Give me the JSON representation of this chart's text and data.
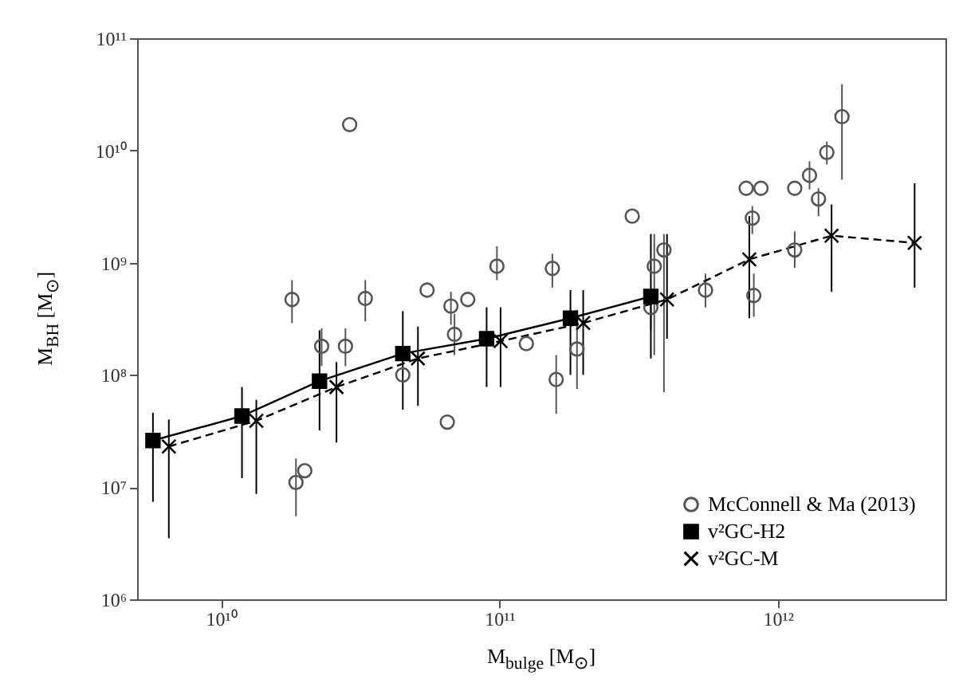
{
  "chart_data": {
    "type": "scatter",
    "xlabel": "M$_{bulge}$ [M$_{⊙}$]",
    "ylabel": "M$_{BH}$ [M$_{⊙}$]",
    "log": "xy",
    "legend": "bottom right",
    "grid": false,
    "xlim": [
      5000000000.0,
      4000000000000.0
    ],
    "ylim": [
      1000000.0,
      100000000000.0
    ],
    "xticks": [
      {
        "value": 10000000000.0,
        "label": "10¹⁰"
      },
      {
        "value": 100000000000.0,
        "label": "10¹¹"
      },
      {
        "value": 1000000000000.0,
        "label": "10¹²"
      }
    ],
    "yticks": [
      {
        "value": 1000000.0,
        "label": "10⁶"
      },
      {
        "value": 10000000.0,
        "label": "10⁷"
      },
      {
        "value": 100000000.0,
        "label": "10⁸"
      },
      {
        "value": 1000000000.0,
        "label": "10⁹"
      },
      {
        "value": 10000000000.0,
        "label": "10¹⁰"
      },
      {
        "value": 100000000000.0,
        "label": "10¹¹"
      }
    ],
    "series": [
      {
        "name": "McConnell & Ma (2013)",
        "type": "scatter",
        "marker": "circle",
        "color": "#555555",
        "x": [
          18000000000.0,
          18600000000.0,
          20000000000.0,
          23000000000.0,
          28000000000.0,
          29000000000.0,
          33000000000.0,
          45000000000.0,
          55000000000.0,
          65000000000.0,
          67000000000.0,
          69000000000.0,
          77000000000.0,
          98000000000.0,
          125000000000.0,
          155000000000.0,
          160000000000.0,
          190000000000.0,
          300000000000.0,
          350000000000.0,
          360000000000.0,
          390000000000.0,
          550000000000.0,
          770000000000.0,
          810000000000.0,
          820000000000.0,
          870000000000.0,
          1150000000000.0,
          1150000000000.0,
          1300000000000.0,
          1400000000000.0,
          1500000000000.0,
          1700000000000.0
        ],
        "values": [
          470000000.0,
          11000000.0,
          14000000.0,
          180000000.0,
          180000000.0,
          17000000000.0,
          480000000.0,
          100000000.0,
          570000000.0,
          38000000.0,
          410000000.0,
          230000000.0,
          470000000.0,
          930000000.0,
          190000000.0,
          890000000.0,
          91000000.0,
          170000000.0,
          2600000000.0,
          400000000.0,
          930000000.0,
          1300000000.0,
          570000000.0,
          4600000000.0,
          2500000000.0,
          510000000.0,
          4600000000.0,
          4600000000.0,
          1300000000.0,
          6000000000.0,
          3700000000.0,
          9600000000.0,
          20000000000.0
        ],
        "errors": [
          [
            290000000.0,
            700000000.0
          ],
          [
            5500000.0,
            18000000.0
          ],
          null,
          [
            120000000.0,
            260000000.0
          ],
          [
            120000000.0,
            260000000.0
          ],
          null,
          [
            300000000.0,
            700000000.0
          ],
          null,
          null,
          null,
          [
            280000000.0,
            550000000.0
          ],
          [
            150000000.0,
            350000000.0
          ],
          null,
          [
            700000000.0,
            1400000000.0
          ],
          null,
          [
            600000000.0,
            1200000000.0
          ],
          [
            45000000.0,
            150000000.0
          ],
          [
            75000000.0,
            380000000.0
          ],
          null,
          [
            250000000.0,
            600000000.0
          ],
          [
            150000000.0,
            1800000000.0
          ],
          [
            70000000.0,
            1800000000.0
          ],
          [
            400000000.0,
            800000000.0
          ],
          null,
          [
            1800000000.0,
            3200000000.0
          ],
          [
            330000000.0,
            800000000.0
          ],
          null,
          null,
          [
            900000000.0,
            1900000000.0
          ],
          [
            4500000000.0,
            8000000000.0
          ],
          [
            2600000000.0,
            4600000000.0
          ],
          [
            7500000000.0,
            12000000000.0
          ],
          [
            5500000000.0,
            39000000000.0
          ]
        ]
      },
      {
        "name": "v²GC-H2",
        "type": "line",
        "marker": "square",
        "line_style": "solid",
        "color": "#000000",
        "x": [
          5700000000.0,
          11900000000.0,
          22600000000.0,
          45000000000.0,
          90000000000.0,
          180000000000.0,
          350000000000.0
        ],
        "values": [
          26000000.0,
          43000000.0,
          88000000.0,
          155000000.0,
          210000000.0,
          320000000.0,
          500000000.0
        ],
        "errors": [
          [
            7400000.0,
            46000000.0
          ],
          [
            12000000.0,
            78000000.0
          ],
          [
            32000000.0,
            250000000.0
          ],
          [
            49000000.0,
            370000000.0
          ],
          [
            78000000.0,
            400000000.0
          ],
          [
            100000000.0,
            570000000.0
          ],
          [
            140000000.0,
            1800000000.0
          ]
        ]
      },
      {
        "name": "v²GC-M",
        "type": "line",
        "marker": "cross",
        "line_style": "dashed",
        "color": "#000000",
        "x": [
          6500000000.0,
          13400000000.0,
          26000000000.0,
          51000000000.0,
          101000000000.0,
          200000000000.0,
          400000000000.0,
          790000000000.0,
          1560000000000.0,
          3100000000000.0
        ],
        "values": [
          23000000.0,
          39000000.0,
          78000000.0,
          140000000.0,
          200000000.0,
          290000000.0,
          470000000.0,
          1070000000.0,
          1740000000.0,
          1500000000.0
        ],
        "errors": [
          [
            3500000.0,
            40000000.0
          ],
          [
            8700000.0,
            60000000.0
          ],
          [
            25000000.0,
            130000000.0
          ],
          [
            53000000.0,
            270000000.0
          ],
          [
            78000000.0,
            400000000.0
          ],
          [
            100000000.0,
            570000000.0
          ],
          [
            210000000.0,
            1800000000.0
          ],
          [
            320000000.0,
            2600000000.0
          ],
          [
            550000000.0,
            3300000000.0
          ],
          [
            600000000.0,
            5100000000.0
          ]
        ]
      }
    ]
  }
}
